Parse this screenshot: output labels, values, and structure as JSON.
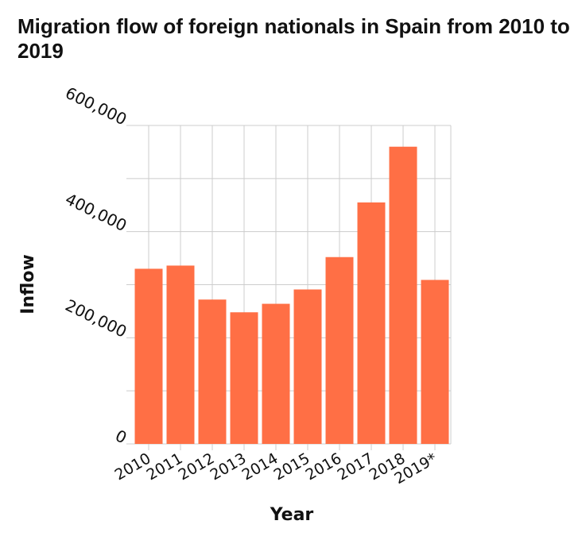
{
  "chart_data": {
    "type": "bar",
    "title": "Migration flow of foreign nationals in Spain from 2010 to 2019",
    "xlabel": "Year",
    "ylabel": "Inflow",
    "categories": [
      "2010",
      "2011",
      "2012",
      "2013",
      "2014",
      "2015",
      "2016",
      "2017",
      "2018",
      "2019*"
    ],
    "values": [
      330000,
      336000,
      272000,
      248000,
      264000,
      291000,
      352000,
      455000,
      560000,
      309000
    ],
    "ylim": [
      0,
      600000
    ],
    "yticks": [
      0,
      200000,
      400000,
      600000
    ],
    "ytick_labels": [
      "0",
      "200,000",
      "400,000",
      "600,000"
    ],
    "grid": true,
    "bar_color": "#ff6f45",
    "grid_color": "#cccccc"
  }
}
